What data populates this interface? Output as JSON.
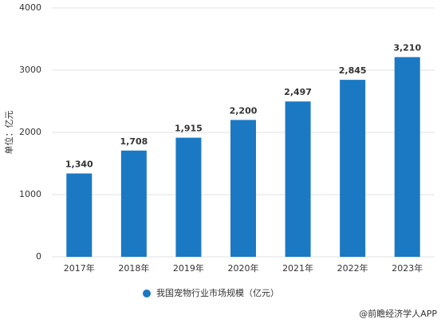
{
  "chart_data": {
    "type": "bar",
    "y_label": "单位：亿元",
    "categories": [
      "2017年",
      "2018年",
      "2019年",
      "2020年",
      "2021年",
      "2022年",
      "2023年"
    ],
    "series": [
      {
        "name": "我国宠物行业市场规模（亿元）",
        "color": "#1b79c4",
        "values": [
          1340,
          1708,
          1915,
          2200,
          2497,
          2845,
          3210
        ],
        "value_labels": [
          "1,340",
          "1,708",
          "1,915",
          "2,200",
          "2,497",
          "2,845",
          "3,210"
        ]
      }
    ],
    "ylim": [
      0,
      4000
    ],
    "yticks": [
      0,
      1000,
      2000,
      3000,
      4000
    ],
    "grid": true,
    "legend": "bottom",
    "source": "@前瞻经济学人APP"
  }
}
